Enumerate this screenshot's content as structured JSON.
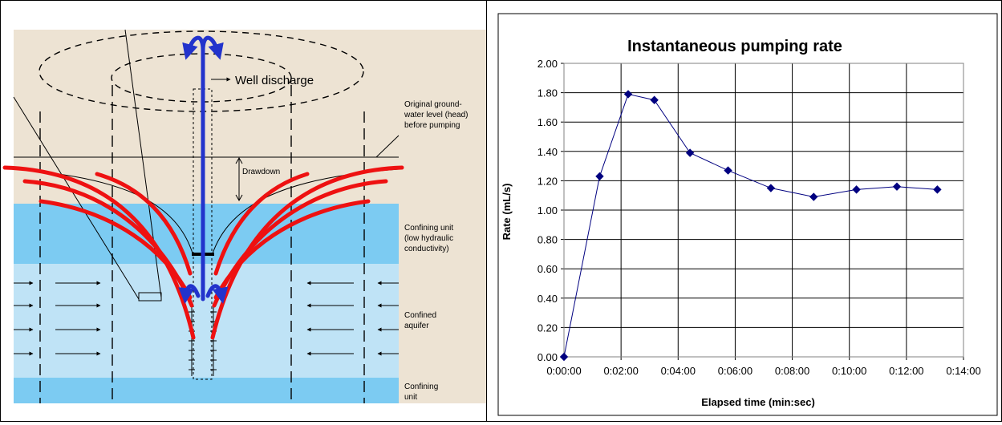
{
  "diagram": {
    "labels": {
      "well_discharge": "Well discharge",
      "original_level_1": "Original ground-",
      "original_level_2": "water level (head)",
      "original_level_3": "before pumping",
      "drawdown": "Drawdown",
      "confining_unit_1": "Confining unit",
      "confining_unit_2": "(low hydraulic",
      "confining_unit_3": "conductivity)",
      "confined_aquifer_1": "Confined",
      "confined_aquifer_2": "aquifer",
      "bottom_confining_1": "Confining",
      "bottom_confining_2": "unit"
    },
    "colors": {
      "background": "#ede3d3",
      "confining": "#7ccbf2",
      "aquifer": "#bfe3f6",
      "flowline": "#ee1111",
      "discharge": "#2233cc"
    }
  },
  "chart_data": {
    "type": "line",
    "title": "Instantaneous pumping rate",
    "xlabel": "Elapsed time (min:sec)",
    "ylabel": "Rate (mL/s)",
    "x_ticks": [
      "0:00:00",
      "0:02:00",
      "0:04:00",
      "0:06:00",
      "0:08:00",
      "0:10:00",
      "0:12:00",
      "0:14:00"
    ],
    "y_ticks": [
      "0.00",
      "0.20",
      "0.40",
      "0.60",
      "0.80",
      "1.00",
      "1.20",
      "1.40",
      "1.60",
      "1.80",
      "2.00"
    ],
    "xlim": [
      "0:00:00",
      "0:14:00"
    ],
    "ylim": [
      0,
      2
    ],
    "grid": true,
    "legend": "none",
    "series": [
      {
        "color": "#000080",
        "marker": "diamond",
        "x": [
          "0:00:00",
          "0:01:15",
          "0:02:15",
          "0:03:10",
          "0:04:25",
          "0:05:45",
          "0:07:15",
          "0:08:45",
          "0:10:15",
          "0:11:40",
          "0:13:05"
        ],
        "y": [
          0.0,
          1.23,
          1.79,
          1.75,
          1.39,
          1.27,
          1.15,
          1.09,
          1.14,
          1.16,
          1.14
        ]
      }
    ]
  }
}
